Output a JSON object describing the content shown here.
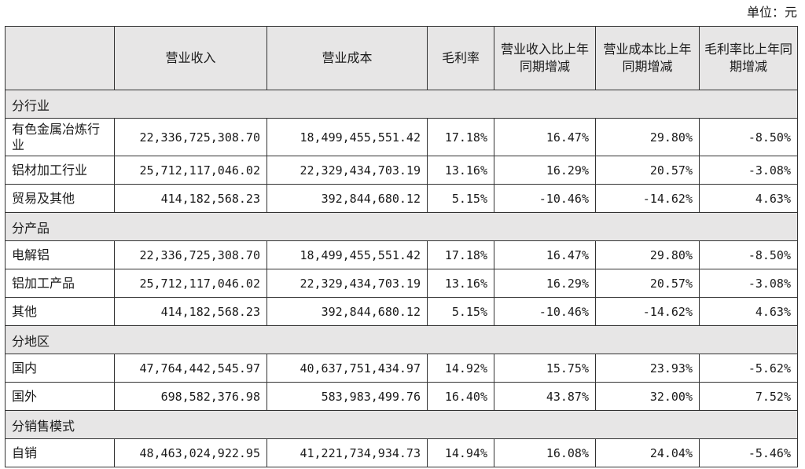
{
  "unit_label": "单位：元",
  "headers": [
    "",
    "营业收入",
    "营业成本",
    "毛利率",
    "营业收入比上年同期增减",
    "营业成本比上年同期增减",
    "毛利率比上年同期增减"
  ],
  "groups": [
    {
      "label": "分行业",
      "rows": [
        [
          "有色金属冶炼行业",
          "22,336,725,308.70",
          "18,499,455,551.42",
          "17.18%",
          "16.47%",
          "29.80%",
          "-8.50%"
        ],
        [
          "铝材加工行业",
          "25,712,117,046.02",
          "22,329,434,703.19",
          "13.16%",
          "16.29%",
          "20.57%",
          "-3.08%"
        ],
        [
          "贸易及其他",
          "414,182,568.23",
          "392,844,680.12",
          "5.15%",
          "-10.46%",
          "-14.62%",
          "4.63%"
        ]
      ]
    },
    {
      "label": "分产品",
      "rows": [
        [
          "电解铝",
          "22,336,725,308.70",
          "18,499,455,551.42",
          "17.18%",
          "16.47%",
          "29.80%",
          "-8.50%"
        ],
        [
          "铝加工产品",
          "25,712,117,046.02",
          "22,329,434,703.19",
          "13.16%",
          "16.29%",
          "20.57%",
          "-3.08%"
        ],
        [
          "其他",
          "414,182,568.23",
          "392,844,680.12",
          "5.15%",
          "-10.46%",
          "-14.62%",
          "4.63%"
        ]
      ]
    },
    {
      "label": "分地区",
      "rows": [
        [
          "国内",
          "47,764,442,545.97",
          "40,637,751,434.97",
          "14.92%",
          "15.75%",
          "23.93%",
          "-5.62%"
        ],
        [
          "国外",
          "698,582,376.98",
          "583,983,499.76",
          "16.40%",
          "43.87%",
          "32.00%",
          "7.52%"
        ]
      ]
    },
    {
      "label": "分销售模式",
      "rows": [
        [
          "自销",
          "48,463,024,922.95",
          "41,221,734,934.73",
          "14.94%",
          "16.08%",
          "24.04%",
          "-5.46%"
        ]
      ]
    }
  ]
}
